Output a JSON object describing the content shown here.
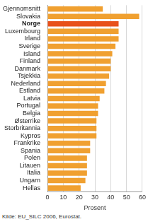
{
  "chart_data": {
    "type": "bar",
    "orientation": "horizontal",
    "categories": [
      "Gjennomsnitt",
      "Slovakia",
      "Norge",
      "Luxembourg",
      "Irland",
      "Sverige",
      "Island",
      "Finland",
      "Danmark",
      "Tsjekkia",
      "Nederland",
      "Estland",
      "Latvia",
      "Portugal",
      "Belgia",
      "Østerrike",
      "Storbritannia",
      "Kypros",
      "Frankrike",
      "Spania",
      "Polen",
      "Litauen",
      "Italia",
      "Ungarn",
      "Hellas"
    ],
    "values": [
      35,
      58,
      45,
      45,
      45,
      43,
      41,
      40,
      40,
      39,
      37,
      36,
      33,
      32,
      32,
      31,
      31,
      31,
      27,
      27,
      25,
      25,
      25,
      24,
      21
    ],
    "colors": [
      "#f0a030",
      "#f0a030",
      "#e8501a",
      "#f0a030",
      "#f0a030",
      "#f0a030",
      "#f0a030",
      "#f0a030",
      "#f0a030",
      "#f0a030",
      "#f0a030",
      "#f0a030",
      "#f0a030",
      "#f0a030",
      "#f0a030",
      "#f0a030",
      "#f0a030",
      "#f0a030",
      "#f0a030",
      "#f0a030",
      "#f0a030",
      "#f0a030",
      "#f0a030",
      "#f0a030",
      "#f0a030"
    ],
    "xlabel": "Prosent",
    "xlim": [
      0,
      60
    ],
    "xticks": [
      0,
      10,
      20,
      30,
      40,
      50,
      60
    ],
    "grid": true,
    "source": "Kilde: EU_SILC 2006, Eurostat."
  }
}
